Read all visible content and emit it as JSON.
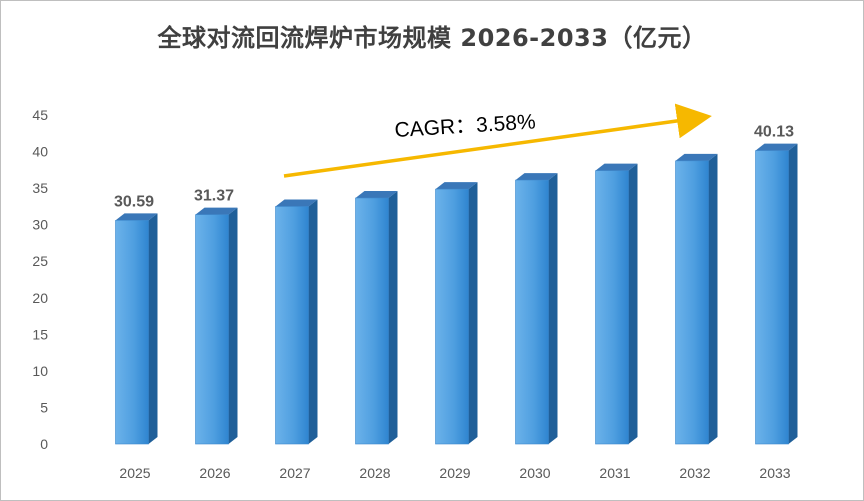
{
  "chart_data": {
    "type": "bar",
    "title": "全球对流回流焊炉市场规模 2026-2033（亿元）",
    "categories": [
      "2025",
      "2026",
      "2027",
      "2028",
      "2029",
      "2030",
      "2031",
      "2032",
      "2033"
    ],
    "values": [
      30.59,
      31.37,
      32.49,
      33.65,
      34.86,
      36.1,
      37.39,
      38.73,
      40.13
    ],
    "data_labels": [
      "30.59",
      "31.37",
      "",
      "",
      "",
      "",
      "",
      "",
      "40.13"
    ],
    "ylim": [
      0,
      45
    ],
    "yticks": [
      0,
      5,
      10,
      15,
      20,
      25,
      30,
      35,
      40,
      45
    ],
    "xlabel": "",
    "ylabel": "",
    "grid": false,
    "legend": "none",
    "annotation": {
      "text": "CAGR：3.58%",
      "type": "arrow"
    },
    "colors": {
      "bar_front_light": "#6cb2ea",
      "bar_front_dark": "#2f85d0",
      "bar_side": "#1f5f99",
      "bar_top": "#3a77b8",
      "arrow": "#f6b800",
      "title": "#404040",
      "axis_text": "#595959"
    }
  }
}
